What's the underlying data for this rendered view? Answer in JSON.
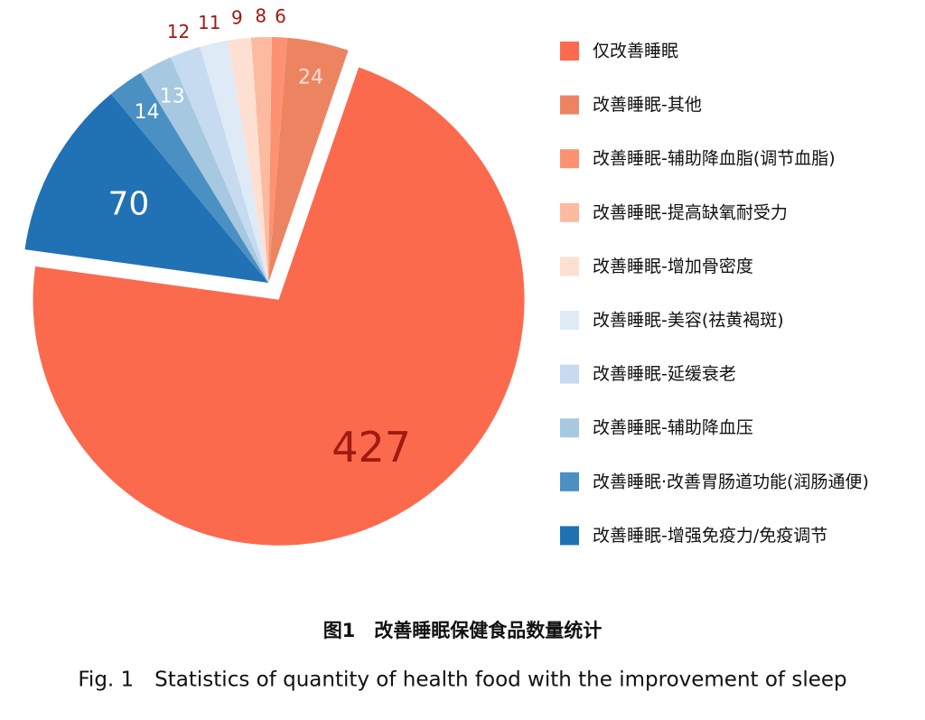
{
  "chart_data": {
    "type": "pie",
    "title": "图1　改善睡眠保健食品数量统计",
    "subtitle": "Fig. 1　Statistics of quantity of health food with the improvement of sleep",
    "categories": [
      "仅改善睡眠",
      "改善睡眠-其他",
      "改善睡眠-辅助降血脂(调节血脂)",
      "改善睡眠-提高缺氧耐受力",
      "改善睡眠-增加骨密度",
      "改善睡眠-美容(祛黄褐斑)",
      "改善睡眠-延缓衰老",
      "改善睡眠-辅助降血压",
      "改善睡眠·改善胃肠道功能(润肠通便)",
      "改善睡眠-增强免疫力/免疫调节"
    ],
    "values": [
      427,
      24,
      6,
      8,
      9,
      11,
      12,
      13,
      14,
      70
    ],
    "colors": [
      "#fc6a4e",
      "#ec8461",
      "#fc9272",
      "#fcbba1",
      "#fde0d2",
      "#deebf7",
      "#c6dbef",
      "#a6c8e0",
      "#4a90c2",
      "#2171b5"
    ]
  }
}
